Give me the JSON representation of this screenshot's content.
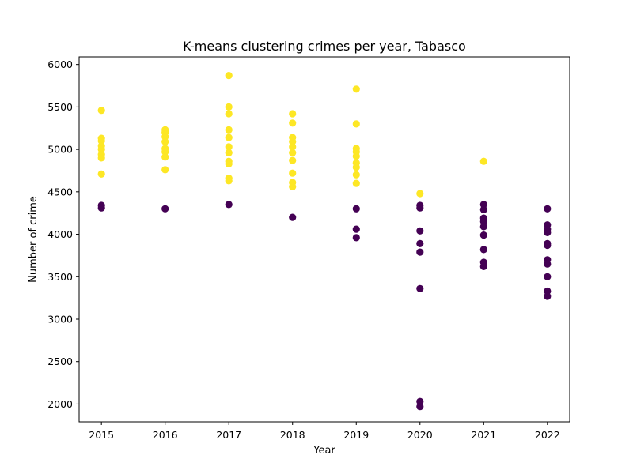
{
  "chart_data": {
    "type": "scatter",
    "title": "K-means clustering crimes per year, Tabasco",
    "xlabel": "Year",
    "ylabel": "Number of crime",
    "xlim": [
      2014.65,
      2022.35
    ],
    "ylim": [
      1790,
      6090
    ],
    "x_ticks": [
      2015,
      2016,
      2017,
      2018,
      2019,
      2020,
      2021,
      2022
    ],
    "y_ticks": [
      2000,
      2500,
      3000,
      3500,
      4000,
      4500,
      5000,
      5500,
      6000
    ],
    "grid": false,
    "legend": "none",
    "series": [
      {
        "cluster": 1,
        "color": "#fde725",
        "points": [
          [
            2015,
            5460
          ],
          [
            2015,
            5130
          ],
          [
            2015,
            5100
          ],
          [
            2015,
            5040
          ],
          [
            2015,
            5000
          ],
          [
            2015,
            4940
          ],
          [
            2015,
            4900
          ],
          [
            2015,
            4710
          ],
          [
            2016,
            5230
          ],
          [
            2016,
            5200
          ],
          [
            2016,
            5150
          ],
          [
            2016,
            5090
          ],
          [
            2016,
            5010
          ],
          [
            2016,
            4970
          ],
          [
            2016,
            4910
          ],
          [
            2016,
            4760
          ],
          [
            2017,
            5870
          ],
          [
            2017,
            5500
          ],
          [
            2017,
            5420
          ],
          [
            2017,
            5230
          ],
          [
            2017,
            5140
          ],
          [
            2017,
            5030
          ],
          [
            2017,
            4960
          ],
          [
            2017,
            4860
          ],
          [
            2017,
            4830
          ],
          [
            2017,
            4660
          ],
          [
            2017,
            4630
          ],
          [
            2018,
            5420
          ],
          [
            2018,
            5310
          ],
          [
            2018,
            5140
          ],
          [
            2018,
            5090
          ],
          [
            2018,
            5030
          ],
          [
            2018,
            4960
          ],
          [
            2018,
            4870
          ],
          [
            2018,
            4720
          ],
          [
            2018,
            4610
          ],
          [
            2018,
            4560
          ],
          [
            2019,
            5710
          ],
          [
            2019,
            5300
          ],
          [
            2019,
            5010
          ],
          [
            2019,
            4970
          ],
          [
            2019,
            4920
          ],
          [
            2019,
            4840
          ],
          [
            2019,
            4790
          ],
          [
            2019,
            4700
          ],
          [
            2019,
            4600
          ],
          [
            2020,
            4480
          ],
          [
            2021,
            4860
          ]
        ]
      },
      {
        "cluster": 0,
        "color": "#440154",
        "points": [
          [
            2015,
            4340
          ],
          [
            2015,
            4310
          ],
          [
            2016,
            4300
          ],
          [
            2017,
            4350
          ],
          [
            2018,
            4200
          ],
          [
            2019,
            4300
          ],
          [
            2019,
            4060
          ],
          [
            2019,
            3960
          ],
          [
            2020,
            4340
          ],
          [
            2020,
            4310
          ],
          [
            2020,
            4040
          ],
          [
            2020,
            3890
          ],
          [
            2020,
            3790
          ],
          [
            2020,
            3360
          ],
          [
            2020,
            2030
          ],
          [
            2020,
            1970
          ],
          [
            2021,
            4350
          ],
          [
            2021,
            4290
          ],
          [
            2021,
            4190
          ],
          [
            2021,
            4150
          ],
          [
            2021,
            4090
          ],
          [
            2021,
            3990
          ],
          [
            2021,
            3820
          ],
          [
            2021,
            3670
          ],
          [
            2021,
            3620
          ],
          [
            2022,
            4300
          ],
          [
            2022,
            4110
          ],
          [
            2022,
            4060
          ],
          [
            2022,
            4020
          ],
          [
            2022,
            3890
          ],
          [
            2022,
            3870
          ],
          [
            2022,
            3700
          ],
          [
            2022,
            3650
          ],
          [
            2022,
            3500
          ],
          [
            2022,
            3330
          ],
          [
            2022,
            3270
          ]
        ]
      }
    ]
  }
}
